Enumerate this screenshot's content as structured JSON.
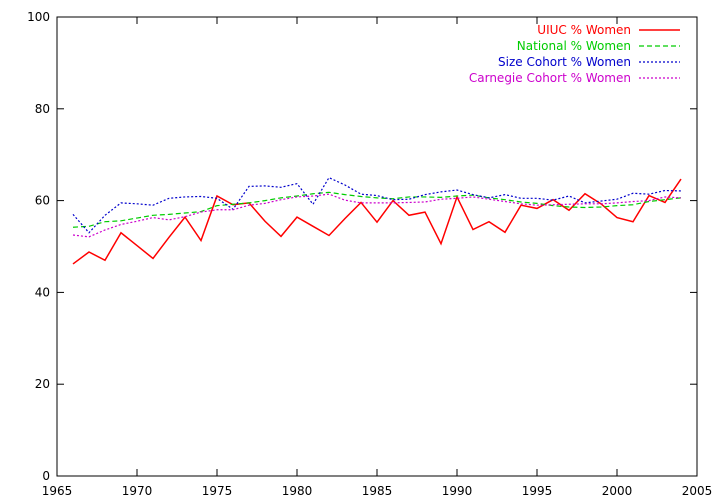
{
  "chart_data": {
    "type": "line",
    "title": "",
    "xlabel": "",
    "ylabel": "",
    "xlim": [
      1965,
      2005
    ],
    "ylim": [
      0,
      100
    ],
    "xticks": [
      1965,
      1970,
      1975,
      1980,
      1985,
      1990,
      1995,
      2000,
      2005
    ],
    "yticks": [
      0,
      20,
      40,
      60,
      80,
      100
    ],
    "grid": false,
    "legend_position": "top-right",
    "x": [
      1966,
      1967,
      1968,
      1969,
      1970,
      1971,
      1972,
      1973,
      1974,
      1975,
      1976,
      1977,
      1978,
      1979,
      1980,
      1981,
      1982,
      1983,
      1984,
      1985,
      1986,
      1987,
      1988,
      1989,
      1990,
      1991,
      1992,
      1993,
      1994,
      1995,
      1996,
      1997,
      1998,
      1999,
      2000,
      2001,
      2002,
      2003,
      2004
    ],
    "series": [
      {
        "name": "UIUC % Women",
        "color": "#ff0000",
        "dash": "solid",
        "values": [
          46.2,
          48.8,
          47.0,
          53.0,
          50.2,
          47.4,
          52.0,
          56.4,
          51.3,
          61.0,
          59.1,
          59.5,
          55.5,
          52.2,
          56.4,
          54.4,
          52.4,
          56.1,
          59.6,
          55.3,
          60.0,
          56.8,
          57.5,
          50.6,
          60.8,
          53.7,
          55.4,
          53.1,
          59.0,
          58.3,
          60.2,
          57.9,
          61.5,
          59.3,
          56.3,
          55.4,
          61.1,
          59.6,
          64.7
        ]
      },
      {
        "name": "National % Women",
        "color": "#00cc00",
        "dash": "dashed",
        "values": [
          54.2,
          54.4,
          55.4,
          55.6,
          56.2,
          56.8,
          57.0,
          57.3,
          57.6,
          58.9,
          59.2,
          59.5,
          60.0,
          60.6,
          61.0,
          61.5,
          61.8,
          61.3,
          60.9,
          60.6,
          60.4,
          60.8,
          60.8,
          60.7,
          61.0,
          61.2,
          60.6,
          60.2,
          59.7,
          59.4,
          58.9,
          58.6,
          58.5,
          58.6,
          58.9,
          59.1,
          59.8,
          60.2,
          60.6
        ]
      },
      {
        "name": "Size Cohort % Women",
        "color": "#0000cc",
        "dash": "dotted",
        "values": [
          57.0,
          53.0,
          56.8,
          59.5,
          59.3,
          59.0,
          60.5,
          60.8,
          60.9,
          60.5,
          58.1,
          63.1,
          63.2,
          62.9,
          63.7,
          59.2,
          65.0,
          63.4,
          61.4,
          61.1,
          60.2,
          60.3,
          61.3,
          61.9,
          62.3,
          61.3,
          60.6,
          61.3,
          60.5,
          60.5,
          60.1,
          61.0,
          59.5,
          59.9,
          60.3,
          61.6,
          61.4,
          62.2,
          62.1
        ]
      },
      {
        "name": "Carnegie Cohort % Women",
        "color": "#cc00cc",
        "dash": "dotted",
        "values": [
          52.5,
          52.1,
          53.6,
          54.8,
          55.5,
          56.3,
          55.8,
          56.5,
          57.5,
          58.0,
          58.0,
          59.0,
          59.4,
          60.2,
          60.8,
          61.0,
          61.4,
          60.1,
          59.5,
          59.5,
          59.5,
          59.6,
          59.7,
          60.3,
          60.5,
          60.8,
          60.3,
          59.8,
          59.3,
          59.0,
          59.1,
          59.2,
          59.3,
          59.3,
          59.5,
          59.8,
          60.0,
          60.8,
          60.6
        ]
      }
    ]
  }
}
